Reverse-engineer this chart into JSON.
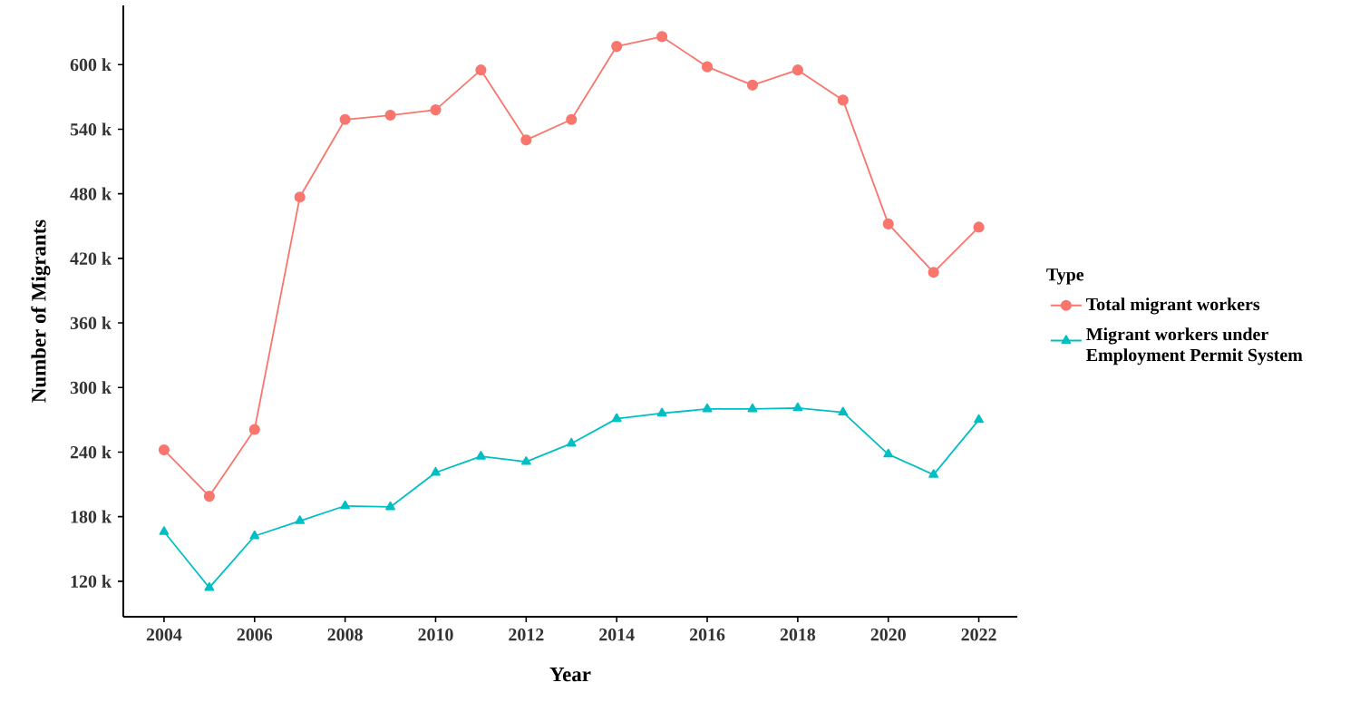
{
  "chart_data": {
    "type": "line",
    "xlabel": "Year",
    "ylabel": "Number of Migrants",
    "legend_title": "Type",
    "legend": "right",
    "x": [
      2004,
      2005,
      2006,
      2007,
      2008,
      2009,
      2010,
      2011,
      2012,
      2013,
      2014,
      2015,
      2016,
      2017,
      2018,
      2019,
      2020,
      2021,
      2022
    ],
    "series": [
      {
        "name": "Total migrant workers",
        "color": "#f8766d",
        "marker": "circle",
        "values": [
          242000,
          199000,
          261000,
          477000,
          549000,
          553000,
          558000,
          595000,
          530000,
          549000,
          617000,
          626000,
          598000,
          581000,
          595000,
          567000,
          452000,
          407000,
          449000
        ]
      },
      {
        "name": "Migrant workers under Employment Permit System",
        "color": "#00bfc4",
        "marker": "triangle",
        "values": [
          166000,
          114000,
          162000,
          176000,
          190000,
          189000,
          221000,
          236000,
          231000,
          248000,
          271000,
          276000,
          280000,
          280000,
          281000,
          277000,
          238000,
          219000,
          270000
        ]
      }
    ],
    "xlim": [
      2003.1,
      2022.85
    ],
    "xticks": [
      2004,
      2006,
      2008,
      2010,
      2012,
      2014,
      2016,
      2018,
      2020,
      2022
    ],
    "ylim": [
      87000,
      655000
    ],
    "yticks": [
      {
        "value": 120000,
        "label": "120 k"
      },
      {
        "value": 180000,
        "label": "180 k"
      },
      {
        "value": 240000,
        "label": "240 k"
      },
      {
        "value": 300000,
        "label": "300 k"
      },
      {
        "value": 360000,
        "label": "360 k"
      },
      {
        "value": 420000,
        "label": "420 k"
      },
      {
        "value": 480000,
        "label": "480 k"
      },
      {
        "value": 540000,
        "label": "540 k"
      },
      {
        "value": 600000,
        "label": "600 k"
      }
    ],
    "grid": false
  }
}
